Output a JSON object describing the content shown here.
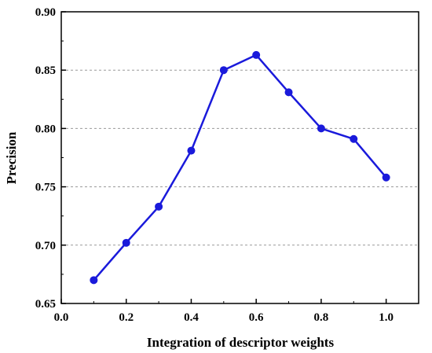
{
  "chart_data": {
    "type": "line",
    "title": "",
    "xlabel": "Integration of descriptor weights",
    "ylabel": "Precision",
    "xlim": [
      0.0,
      1.1
    ],
    "ylim": [
      0.65,
      0.9
    ],
    "x_ticks": [
      "0.0",
      "0.2",
      "0.4",
      "0.6",
      "0.8",
      "1.0"
    ],
    "y_ticks": [
      "0.65",
      "0.70",
      "0.75",
      "0.80",
      "0.85",
      "0.90"
    ],
    "grid": "horizontal-dashed",
    "series": [
      {
        "x": [
          0.1,
          0.2,
          0.3,
          0.4,
          0.5,
          0.6,
          0.7,
          0.8,
          0.9,
          1.0
        ],
        "values": [
          0.67,
          0.702,
          0.733,
          0.781,
          0.85,
          0.863,
          0.831,
          0.8,
          0.791,
          0.758
        ],
        "color": "#1a1adb"
      }
    ]
  }
}
